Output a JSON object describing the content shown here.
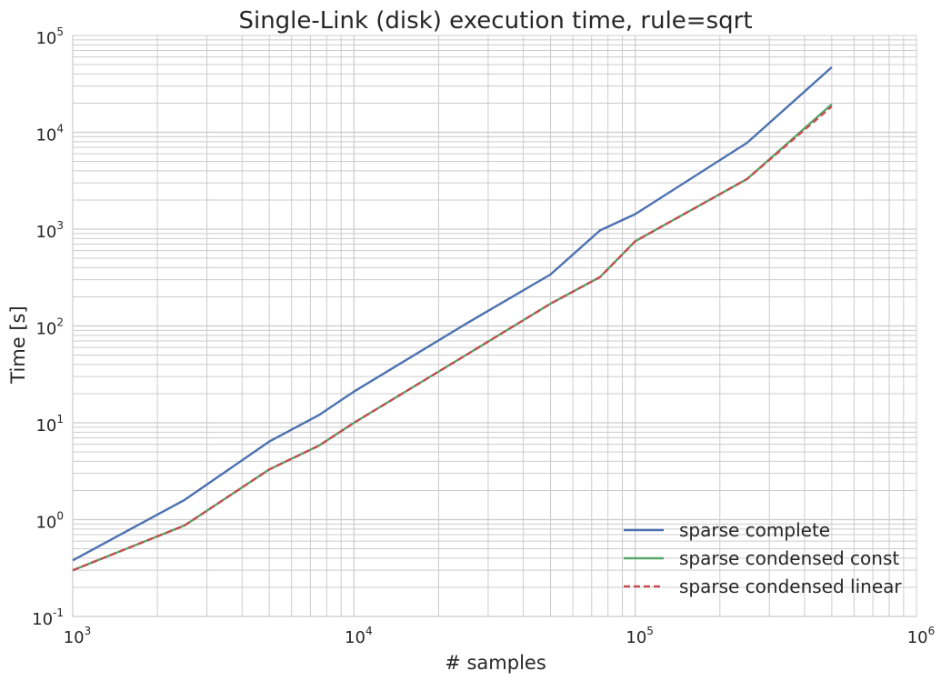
{
  "chart_data": {
    "type": "line",
    "title": "Single-Link (disk) execution time, rule=sqrt",
    "xlabel": "# samples",
    "ylabel": "Time [s]",
    "xscale": "log",
    "yscale": "log",
    "xlim": [
      1000,
      1000000
    ],
    "ylim": [
      0.1,
      100000
    ],
    "grid": true,
    "legend": "bottom-right",
    "x_ticks": [
      {
        "base": "10",
        "exp": "3"
      },
      {
        "base": "10",
        "exp": "4"
      },
      {
        "base": "10",
        "exp": "5"
      },
      {
        "base": "10",
        "exp": "6"
      }
    ],
    "y_ticks": [
      {
        "base": "10",
        "exp": "-1"
      },
      {
        "base": "10",
        "exp": "0"
      },
      {
        "base": "10",
        "exp": "1"
      },
      {
        "base": "10",
        "exp": "2"
      },
      {
        "base": "10",
        "exp": "3"
      },
      {
        "base": "10",
        "exp": "4"
      },
      {
        "base": "10",
        "exp": "5"
      }
    ],
    "x": [
      1000,
      2500,
      5000,
      7500,
      10000,
      25000,
      50000,
      75000,
      100000,
      250000,
      500000
    ],
    "series": [
      {
        "name": "sparse complete",
        "color": "#4c72b0",
        "dash": "solid",
        "values": [
          0.38,
          1.6,
          6.4,
          12,
          21,
          105,
          340,
          970,
          1430,
          7800,
          47000
        ]
      },
      {
        "name": "sparse condensed const",
        "color": "#55a868",
        "dash": "solid",
        "values": [
          0.3,
          0.87,
          3.3,
          5.8,
          10,
          50,
          170,
          320,
          750,
          3300,
          19500
        ]
      },
      {
        "name": "sparse condensed linear",
        "color": "#c44e52",
        "dash": "dashed",
        "values": [
          0.3,
          0.87,
          3.3,
          5.8,
          10,
          50,
          170,
          320,
          750,
          3300,
          18500
        ]
      }
    ]
  }
}
